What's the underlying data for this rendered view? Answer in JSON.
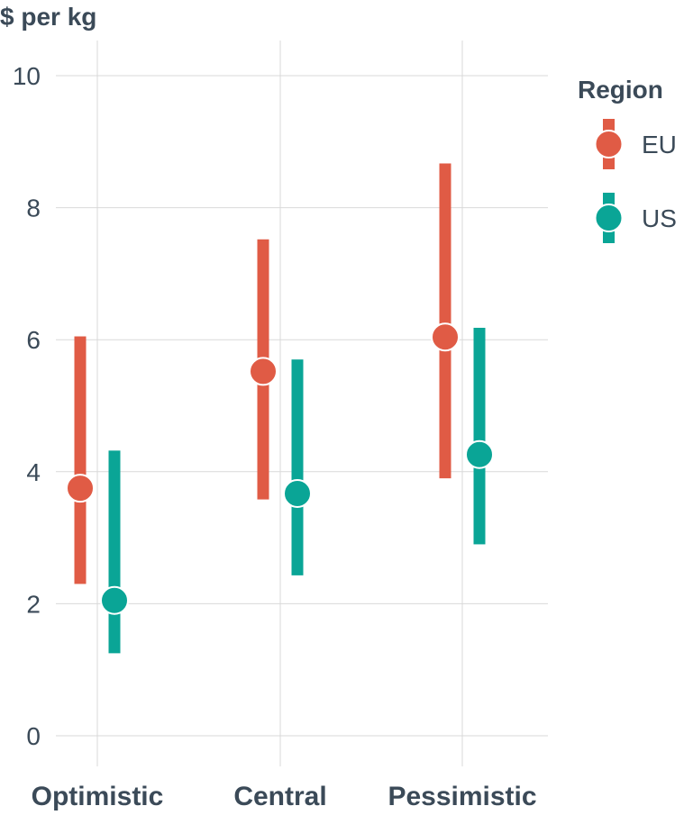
{
  "chart_data": {
    "type": "pointrange",
    "ylabel": "$ per kg",
    "ylim": [
      0,
      10
    ],
    "yticks": [
      0,
      2,
      4,
      6,
      8,
      10
    ],
    "categories": [
      "Optimistic",
      "Central",
      "Pessimistic"
    ],
    "legend": {
      "title": "Region",
      "placement": "right"
    },
    "grid": true,
    "series": [
      {
        "name": "EU",
        "color": "#e05b45",
        "points": [
          {
            "category": "Optimistic",
            "value": 3.75,
            "low": 2.3,
            "high": 6.05
          },
          {
            "category": "Central",
            "value": 5.52,
            "low": 3.58,
            "high": 7.52
          },
          {
            "category": "Pessimistic",
            "value": 6.04,
            "low": 3.9,
            "high": 8.67
          }
        ]
      },
      {
        "name": "US",
        "color": "#0aa596",
        "points": [
          {
            "category": "Optimistic",
            "value": 2.05,
            "low": 1.25,
            "high": 4.32
          },
          {
            "category": "Central",
            "value": 3.67,
            "low": 2.43,
            "high": 5.7
          },
          {
            "category": "Pessimistic",
            "value": 4.26,
            "low": 2.9,
            "high": 6.18
          }
        ]
      }
    ]
  }
}
